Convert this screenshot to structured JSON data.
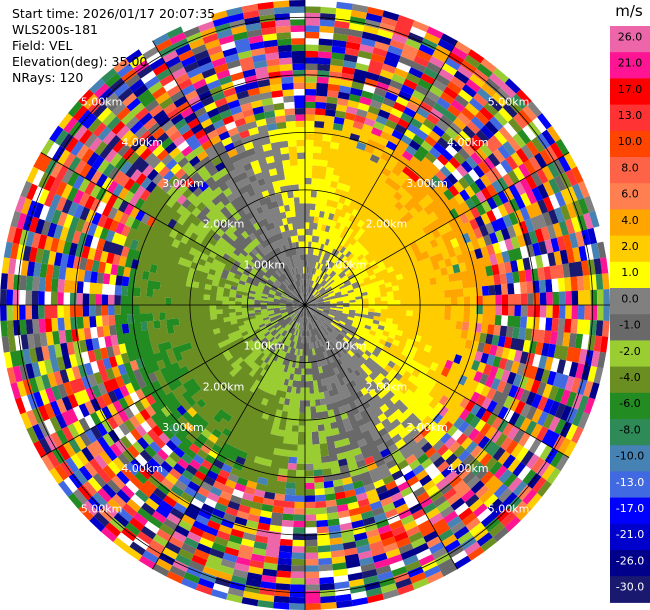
{
  "info": {
    "start_time": "Start time: 2026/01/17 20:07:35",
    "device": "WLS200s-181",
    "field": "Field: VEL",
    "elevation": "Elevation(deg): 35.00",
    "nrays": "NRays: 120"
  },
  "colorbar": {
    "unit": "m/s",
    "ticks": [
      "26.0",
      "21.0",
      "17.0",
      "13.0",
      "10.0",
      "8.0",
      "6.0",
      "4.0",
      "2.0",
      "1.0",
      "0.0",
      "-1.0",
      "-2.0",
      "-4.0",
      "-6.0",
      "-8.0",
      "-10.0",
      "-13.0",
      "-17.0",
      "-21.0",
      "-26.0",
      "-30.0"
    ],
    "colors": [
      "#ee66aa",
      "#ff1493",
      "#ff0000",
      "#ff3333",
      "#ff4500",
      "#ff6347",
      "#ff7f50",
      "#ffa500",
      "#ffcc00",
      "#ffff00",
      "#808080",
      "#696969",
      "#9acd32",
      "#6b8e23",
      "#228b22",
      "#2e8b57",
      "#4682b4",
      "#4169e1",
      "#0000ff",
      "#0000cd",
      "#00008b",
      "#191970"
    ]
  },
  "chart_data": {
    "type": "heatmap",
    "field": "VEL",
    "unit": "m/s",
    "projection": "polar",
    "nrays": 120,
    "elevation_deg": 35.0,
    "range_ring_labels_km": [
      "1.00km",
      "2.00km",
      "3.00km",
      "4.00km",
      "5.00km"
    ],
    "range_rings_km": [
      1,
      2,
      3,
      4,
      5
    ],
    "max_range_km": 5.3,
    "value_range": [
      -30.0,
      30.0
    ]
  }
}
